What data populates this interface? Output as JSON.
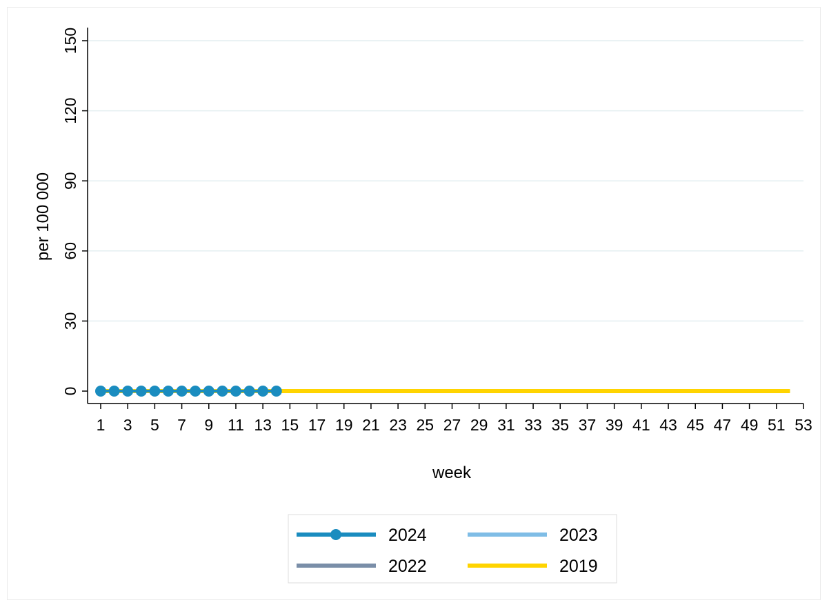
{
  "chart_data": {
    "type": "line",
    "xlabel": "week",
    "ylabel": "per 100 000",
    "ylim": [
      0,
      150
    ],
    "yticks": [
      0,
      30,
      60,
      90,
      120,
      150
    ],
    "xlim": [
      1,
      53
    ],
    "xticks": [
      1,
      3,
      5,
      7,
      9,
      11,
      13,
      15,
      17,
      19,
      21,
      23,
      25,
      27,
      29,
      31,
      33,
      35,
      37,
      39,
      41,
      43,
      45,
      47,
      49,
      51,
      53
    ],
    "grid": true,
    "legend_position": "bottom",
    "series": [
      {
        "name": "2024",
        "color": "#1a8cbf",
        "marker": "circle",
        "x": [
          1,
          2,
          3,
          4,
          5,
          6,
          7,
          8,
          9,
          10,
          11,
          12,
          13,
          14
        ],
        "values": [
          0,
          0,
          0,
          0,
          0,
          0,
          0,
          0,
          0,
          0,
          0,
          0,
          0,
          0
        ]
      },
      {
        "name": "2023",
        "color": "#7fbde6",
        "marker": "none",
        "x": [
          1,
          2,
          3,
          4,
          5,
          6,
          7,
          8,
          9,
          10,
          11,
          12,
          13,
          14,
          15,
          16,
          17,
          18,
          19,
          20,
          21,
          22,
          23,
          24,
          25,
          26,
          27,
          28,
          29,
          30,
          31,
          32,
          33,
          34,
          35,
          36,
          37,
          38,
          39,
          40,
          41,
          42,
          43,
          44,
          45,
          46,
          47,
          48,
          49,
          50,
          51,
          52
        ],
        "values": [
          0,
          0,
          0,
          0,
          0,
          0,
          0,
          0,
          0,
          0,
          0,
          0,
          0,
          0,
          0,
          0,
          0,
          0,
          0,
          0,
          0,
          0,
          0,
          0,
          0,
          0,
          0,
          0,
          0,
          0,
          0,
          0,
          0,
          0,
          0,
          0,
          0,
          0,
          0,
          0,
          0,
          0,
          0,
          0,
          0,
          0,
          0,
          0,
          0,
          0,
          0,
          0
        ]
      },
      {
        "name": "2022",
        "color": "#7a8ea8",
        "marker": "none",
        "x": [
          1,
          2,
          3,
          4,
          5,
          6,
          7,
          8,
          9,
          10,
          11,
          12,
          13,
          14,
          15,
          16,
          17,
          18,
          19,
          20,
          21,
          22,
          23,
          24,
          25,
          26,
          27,
          28,
          29,
          30,
          31,
          32,
          33,
          34,
          35,
          36,
          37,
          38,
          39,
          40,
          41,
          42,
          43,
          44,
          45,
          46,
          47,
          48,
          49,
          50,
          51,
          52
        ],
        "values": [
          0,
          0,
          0,
          0,
          0,
          0,
          0,
          0,
          0.3,
          0,
          0.3,
          0,
          0,
          0,
          0,
          0,
          0,
          0.3,
          0,
          0.3,
          0,
          0,
          0,
          0.3,
          0,
          0,
          0,
          0,
          0,
          0,
          0,
          0,
          0,
          0,
          0,
          0,
          0.3,
          0,
          0,
          0,
          0,
          0,
          0,
          0.3,
          0.3,
          0.3,
          0,
          0,
          0,
          0,
          0,
          0
        ]
      },
      {
        "name": "2019",
        "color": "#ffd400",
        "marker": "none",
        "x": [
          1,
          2,
          3,
          4,
          5,
          6,
          7,
          8,
          9,
          10,
          11,
          12,
          13,
          14,
          15,
          16,
          17,
          18,
          19,
          20,
          21,
          22,
          23,
          24,
          25,
          26,
          27,
          28,
          29,
          30,
          31,
          32,
          33,
          34,
          35,
          36,
          37,
          38,
          39,
          40,
          41,
          42,
          43,
          44,
          45,
          46,
          47,
          48,
          49,
          50,
          51,
          52
        ],
        "values": [
          0,
          0,
          0,
          0,
          0,
          0,
          0,
          0,
          0,
          0,
          0,
          0,
          0,
          0,
          0,
          0,
          0,
          0,
          0,
          0,
          0,
          0,
          0,
          0,
          0,
          0,
          0,
          0,
          0,
          0,
          0,
          0,
          0,
          0,
          0,
          0,
          0,
          0,
          0,
          0,
          0,
          0,
          0,
          0,
          0,
          0,
          0,
          0,
          0,
          0,
          0,
          0
        ]
      }
    ]
  }
}
